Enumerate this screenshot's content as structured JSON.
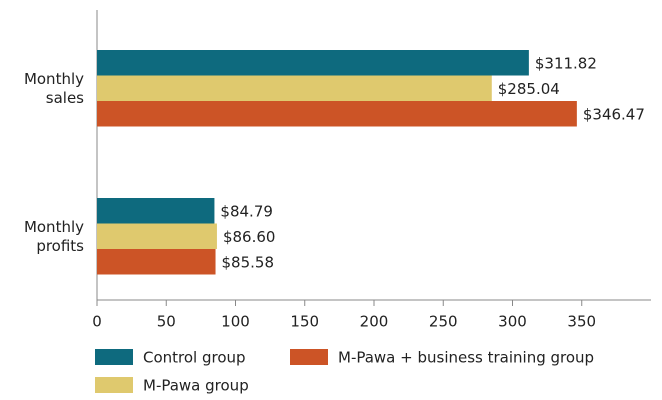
{
  "chart_data": {
    "type": "hbar",
    "categories": [
      "Monthly sales",
      "Monthly profits"
    ],
    "series": [
      {
        "name": "Control group",
        "color": "#0e6a7e",
        "values": [
          311.82,
          84.79
        ],
        "value_labels": [
          "$311.82",
          "$84.79"
        ]
      },
      {
        "name": "M-Pawa group",
        "color": "#dfc96e",
        "values": [
          285.04,
          86.6
        ],
        "value_labels": [
          "$285.04",
          "$86.60"
        ]
      },
      {
        "name": "M-Pawa + business training group",
        "color": "#cc5426",
        "values": [
          346.47,
          85.58
        ],
        "value_labels": [
          "$346.47",
          "$85.58"
        ]
      }
    ],
    "xlim": [
      0,
      400
    ],
    "xticks": [
      0,
      50,
      100,
      150,
      200,
      250,
      300,
      350
    ]
  }
}
